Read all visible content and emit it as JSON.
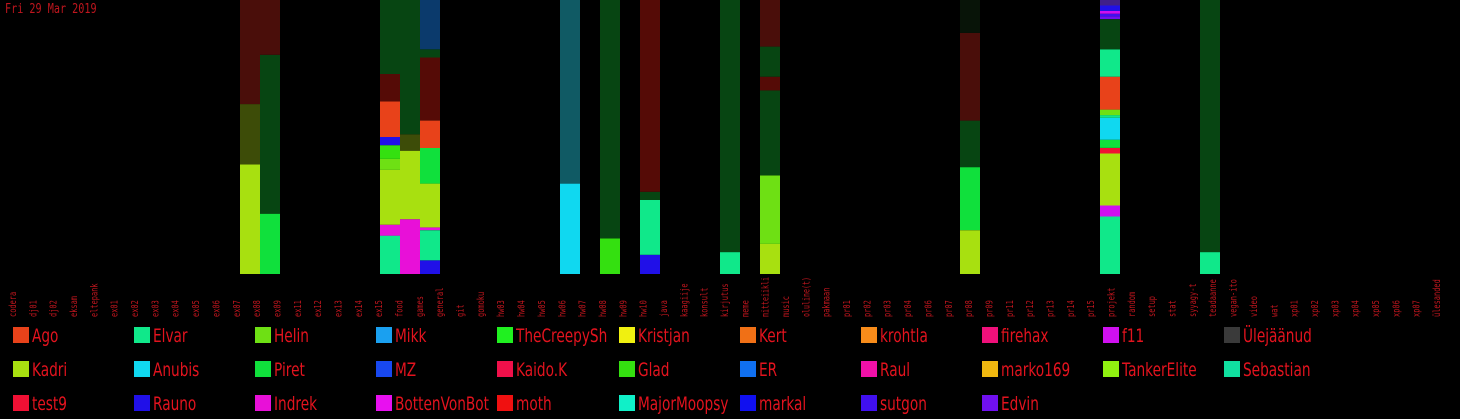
{
  "date_label": "Fri 29 Mar 2019",
  "chart_data": {
    "type": "bar",
    "stacked": true,
    "title": "Fri 29 Mar 2019",
    "ylim": [
      0,
      100
    ],
    "categories": [
      "codera",
      "dj01",
      "dj02",
      "eksam",
      "eltepank",
      "ex01",
      "ex02",
      "ex03",
      "ex04",
      "ex05",
      "ex06",
      "ex07",
      "ex08",
      "ex09",
      "ex11",
      "ex12",
      "ex13",
      "ex14",
      "ex15",
      "food",
      "games",
      "general",
      "git",
      "gomoku",
      "hw03",
      "hw04",
      "hw05",
      "hw06",
      "hw07",
      "hw08",
      "hw09",
      "hw10",
      "java",
      "kaagiije",
      "konsult",
      "kirjutus",
      "meme",
      "mitteiikli",
      "music",
      "oluline(t)",
      "pakmaan",
      "pr01",
      "pr02",
      "pr03",
      "pr04",
      "pr06",
      "pr07",
      "pr08",
      "pr09",
      "pr11",
      "pr12",
      "pr13",
      "pr14",
      "pr15",
      "projekt",
      "random",
      "setup",
      "stat",
      "syyagy-t",
      "teadaanne",
      "vegan-ito",
      "video",
      "wat",
      "xp01",
      "xp02",
      "xp03",
      "xp04",
      "xp05",
      "xp06",
      "xp07",
      "ülesanded"
    ],
    "stacks": [
      {
        "category": "ex08",
        "segments": [
          {
            "user": "Kadri",
            "value": 40
          },
          {
            "user": "c7",
            "value": 22
          },
          {
            "user": "c2",
            "value": 38
          }
        ]
      },
      {
        "category": "ex09",
        "segments": [
          {
            "user": "Piret",
            "value": 22
          },
          {
            "user": "c1",
            "value": 58
          },
          {
            "user": "c2",
            "value": 20
          }
        ]
      },
      {
        "category": "food",
        "segments": [
          {
            "user": "Elvar",
            "value": 14
          },
          {
            "user": "Indrek",
            "value": 4
          },
          {
            "user": "Kadri",
            "value": 20
          },
          {
            "user": "Helin",
            "value": 4
          },
          {
            "user": "Glad",
            "value": 5
          },
          {
            "user": "Rauno",
            "value": 3
          },
          {
            "user": "Ago",
            "value": 13
          },
          {
            "user": "c3",
            "value": 10
          },
          {
            "user": "c1",
            "value": 27
          }
        ]
      },
      {
        "category": "games",
        "segments": [
          {
            "user": "Indrek",
            "value": 20
          },
          {
            "user": "Kadri",
            "value": 25
          },
          {
            "user": "c7",
            "value": 6
          },
          {
            "user": "c1",
            "value": 49
          }
        ]
      },
      {
        "category": "general",
        "segments": [
          {
            "user": "Rauno",
            "value": 5
          },
          {
            "user": "Elvar",
            "value": 11
          },
          {
            "user": "Indrek",
            "value": 1
          },
          {
            "user": "Kadri",
            "value": 16
          },
          {
            "user": "Piret",
            "value": 13
          },
          {
            "user": "Ago",
            "value": 10
          },
          {
            "user": "c3",
            "value": 23
          },
          {
            "user": "c1",
            "value": 3
          },
          {
            "user": "c5",
            "value": 18
          }
        ]
      },
      {
        "category": "hw07",
        "segments": [
          {
            "user": "Anubis",
            "value": 33
          },
          {
            "user": "c4",
            "value": 67
          }
        ]
      },
      {
        "category": "hw09",
        "segments": [
          {
            "user": "Glad",
            "value": 13
          },
          {
            "user": "c1",
            "value": 87
          }
        ]
      },
      {
        "category": "java",
        "segments": [
          {
            "user": "Rauno",
            "value": 7
          },
          {
            "user": "Elvar",
            "value": 20
          },
          {
            "user": "c1",
            "value": 3
          },
          {
            "user": "c3",
            "value": 70
          }
        ]
      },
      {
        "category": "meme",
        "segments": [
          {
            "user": "Elvar",
            "value": 8
          },
          {
            "user": "c1",
            "value": 92
          }
        ]
      },
      {
        "category": "music",
        "segments": [
          {
            "user": "Kadri",
            "value": 11
          },
          {
            "user": "Helin",
            "value": 25
          },
          {
            "user": "c1",
            "value": 31
          },
          {
            "user": "c3",
            "value": 5
          },
          {
            "user": "c1",
            "value": 11
          },
          {
            "user": "c2",
            "value": 17
          }
        ]
      },
      {
        "category": "pr09",
        "segments": [
          {
            "user": "Kadri",
            "value": 16
          },
          {
            "user": "Piret",
            "value": 23
          },
          {
            "user": "c1",
            "value": 17
          },
          {
            "user": "c2",
            "value": 32
          },
          {
            "user": "c6",
            "value": 12
          }
        ]
      },
      {
        "category": "random",
        "segments": [
          {
            "user": "Elvar",
            "value": 21
          },
          {
            "user": "f11",
            "value": 4
          },
          {
            "user": "Kadri",
            "value": 19
          },
          {
            "user": "test9",
            "value": 2
          },
          {
            "user": "Piret",
            "value": 3
          },
          {
            "user": "Anubis",
            "value": 8
          },
          {
            "user": "Elvar",
            "value": 1
          },
          {
            "user": "Helin",
            "value": 2
          },
          {
            "user": "Ago",
            "value": 12
          },
          {
            "user": "Elvar",
            "value": 10
          },
          {
            "user": "c1",
            "value": 11
          },
          {
            "user": "Edvin",
            "value": 1
          },
          {
            "user": "sutgon",
            "value": 1
          },
          {
            "user": "f11",
            "value": 1
          },
          {
            "user": "Rauno",
            "value": 2
          },
          {
            "user": "c8",
            "value": 3
          }
        ]
      },
      {
        "category": "vegan-ito",
        "segments": [
          {
            "user": "Elvar",
            "value": 8
          },
          {
            "user": "c1",
            "value": 92
          }
        ]
      }
    ]
  },
  "legend": [
    {
      "name": "Ago",
      "color": "#e8421a"
    },
    {
      "name": "Elvar",
      "color": "#10e88a"
    },
    {
      "name": "Helin",
      "color": "#6ee014"
    },
    {
      "name": "Mikk",
      "color": "#1aa0f0"
    },
    {
      "name": "TheCreepySh",
      "color": "#20f020"
    },
    {
      "name": "Kristjan",
      "color": "#f0f010"
    },
    {
      "name": "Kert",
      "color": "#f07016"
    },
    {
      "name": "krohtla",
      "color": "#f88c1a"
    },
    {
      "name": "firehax",
      "color": "#f0107a"
    },
    {
      "name": "f11",
      "color": "#d010f0"
    },
    {
      "name": "Ülejäänud",
      "color": "#3a3a3a"
    },
    {
      "name": "Kadri",
      "color": "#a8e010"
    },
    {
      "name": "Anubis",
      "color": "#10d8f0"
    },
    {
      "name": "Piret",
      "color": "#10e03c"
    },
    {
      "name": "MZ",
      "color": "#1848f0"
    },
    {
      "name": "Kaido.K",
      "color": "#f0104a"
    },
    {
      "name": "Glad",
      "color": "#34e010"
    },
    {
      "name": "ER",
      "color": "#1070f0"
    },
    {
      "name": "Raul",
      "color": "#f010a8"
    },
    {
      "name": "marko169",
      "color": "#f0b810"
    },
    {
      "name": "TankerElite",
      "color": "#90f010"
    },
    {
      "name": "Sebastian",
      "color": "#10e0a0"
    },
    {
      "name": "test9",
      "color": "#f01034"
    },
    {
      "name": "Rauno",
      "color": "#2010e8"
    },
    {
      "name": "Indrek",
      "color": "#e810d8"
    },
    {
      "name": "BottenVonBot",
      "color": "#e810f0"
    },
    {
      "name": "moth",
      "color": "#f01010"
    },
    {
      "name": "MajorMoopsy",
      "color": "#10f0c8"
    },
    {
      "name": "markal",
      "color": "#1010f0"
    },
    {
      "name": "sutgon",
      "color": "#4010f0"
    },
    {
      "name": "Edvin",
      "color": "#7010f0"
    }
  ],
  "dim_colors": {
    "c1": "#074512",
    "c2": "#4a0e0a",
    "c3": "#550b06",
    "c4": "#105a64",
    "c5": "#0b3a6c",
    "c6": "#081408",
    "c7": "#3d4c08",
    "c8": "#40208a"
  }
}
